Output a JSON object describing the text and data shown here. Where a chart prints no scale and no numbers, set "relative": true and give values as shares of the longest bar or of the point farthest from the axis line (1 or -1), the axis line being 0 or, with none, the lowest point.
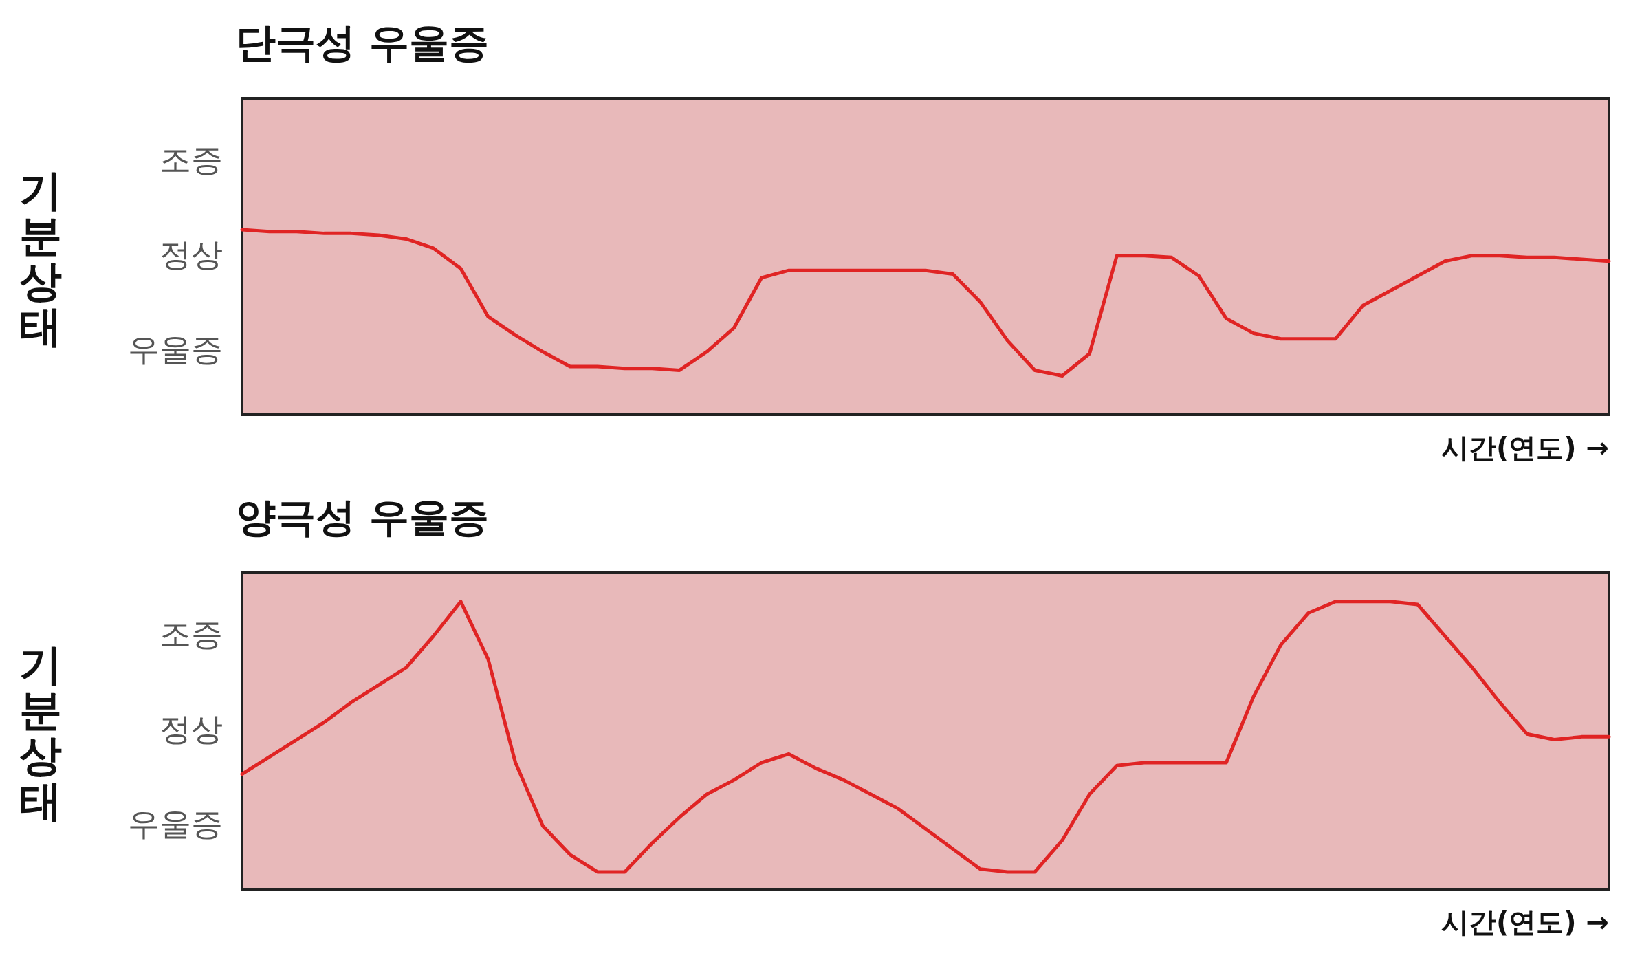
{
  "chart_data": [
    {
      "type": "line",
      "title": "단극성 우울증",
      "ylabel": "기분상태",
      "xlabel": "시간(연도) →",
      "relative": true,
      "grid": false,
      "marker": "none",
      "line_style": "solid",
      "annotations": [
        "조증",
        "정상",
        "우울증"
      ],
      "categories": [
        null,
        null,
        null,
        null,
        null,
        null,
        null,
        null,
        null,
        null,
        null,
        null,
        null,
        null,
        null,
        null,
        null,
        null,
        null,
        null,
        null,
        null,
        null,
        null,
        null,
        null,
        null,
        null,
        null,
        null,
        null,
        null,
        null,
        null,
        null,
        null,
        null,
        null,
        null,
        null,
        null,
        null,
        null,
        null,
        null,
        null,
        null,
        null,
        null,
        null,
        null
      ],
      "series": [
        {
          "color": "#e02424",
          "values": [
            1,
            0.99,
            0.99,
            0.98,
            0.98,
            0.97,
            0.95,
            0.9,
            0.79,
            0.53,
            0.43,
            0.34,
            0.26,
            0.26,
            0.25,
            0.25,
            0.24,
            0.34,
            0.47,
            0.74,
            0.78,
            0.78,
            0.78,
            0.78,
            0.78,
            0.78,
            0.76,
            0.61,
            0.4,
            0.24,
            0.21,
            0.33,
            0.86,
            0.86,
            0.85,
            0.75,
            0.52,
            0.44,
            0.41,
            0.41,
            0.41,
            0.59,
            0.67,
            0.75,
            0.83,
            0.86,
            0.86,
            0.85,
            0.85,
            0.84,
            0.83
          ]
        }
      ]
    },
    {
      "type": "line",
      "title": "양극성 우울증",
      "ylabel": "기분상태",
      "xlabel": "시간(연도) →",
      "relative": true,
      "grid": false,
      "marker": "none",
      "line_style": "solid",
      "annotations": [
        "조증",
        "정상",
        "우울증"
      ],
      "categories": [
        null,
        null,
        null,
        null,
        null,
        null,
        null,
        null,
        null,
        null,
        null,
        null,
        null,
        null,
        null,
        null,
        null,
        null,
        null,
        null,
        null,
        null,
        null,
        null,
        null,
        null,
        null,
        null,
        null,
        null,
        null,
        null,
        null,
        null,
        null,
        null,
        null,
        null,
        null,
        null,
        null,
        null,
        null,
        null,
        null,
        null,
        null,
        null,
        null,
        null,
        null
      ],
      "series": [
        {
          "color": "#e02424",
          "values": [
            0.4,
            0.46,
            0.52,
            0.58,
            0.65,
            0.71,
            0.77,
            0.88,
            1,
            0.8,
            0.44,
            0.22,
            0.12,
            0.06,
            0.06,
            0.16,
            0.25,
            0.33,
            0.38,
            0.44,
            0.47,
            0.42,
            0.38,
            0.33,
            0.28,
            0.21,
            0.14,
            0.07,
            0.06,
            0.06,
            0.17,
            0.33,
            0.43,
            0.44,
            0.44,
            0.44,
            0.44,
            0.67,
            0.85,
            0.96,
            1,
            1,
            1,
            0.99,
            0.88,
            0.77,
            0.65,
            0.54,
            0.52,
            0.53,
            0.53
          ]
        }
      ]
    }
  ]
}
